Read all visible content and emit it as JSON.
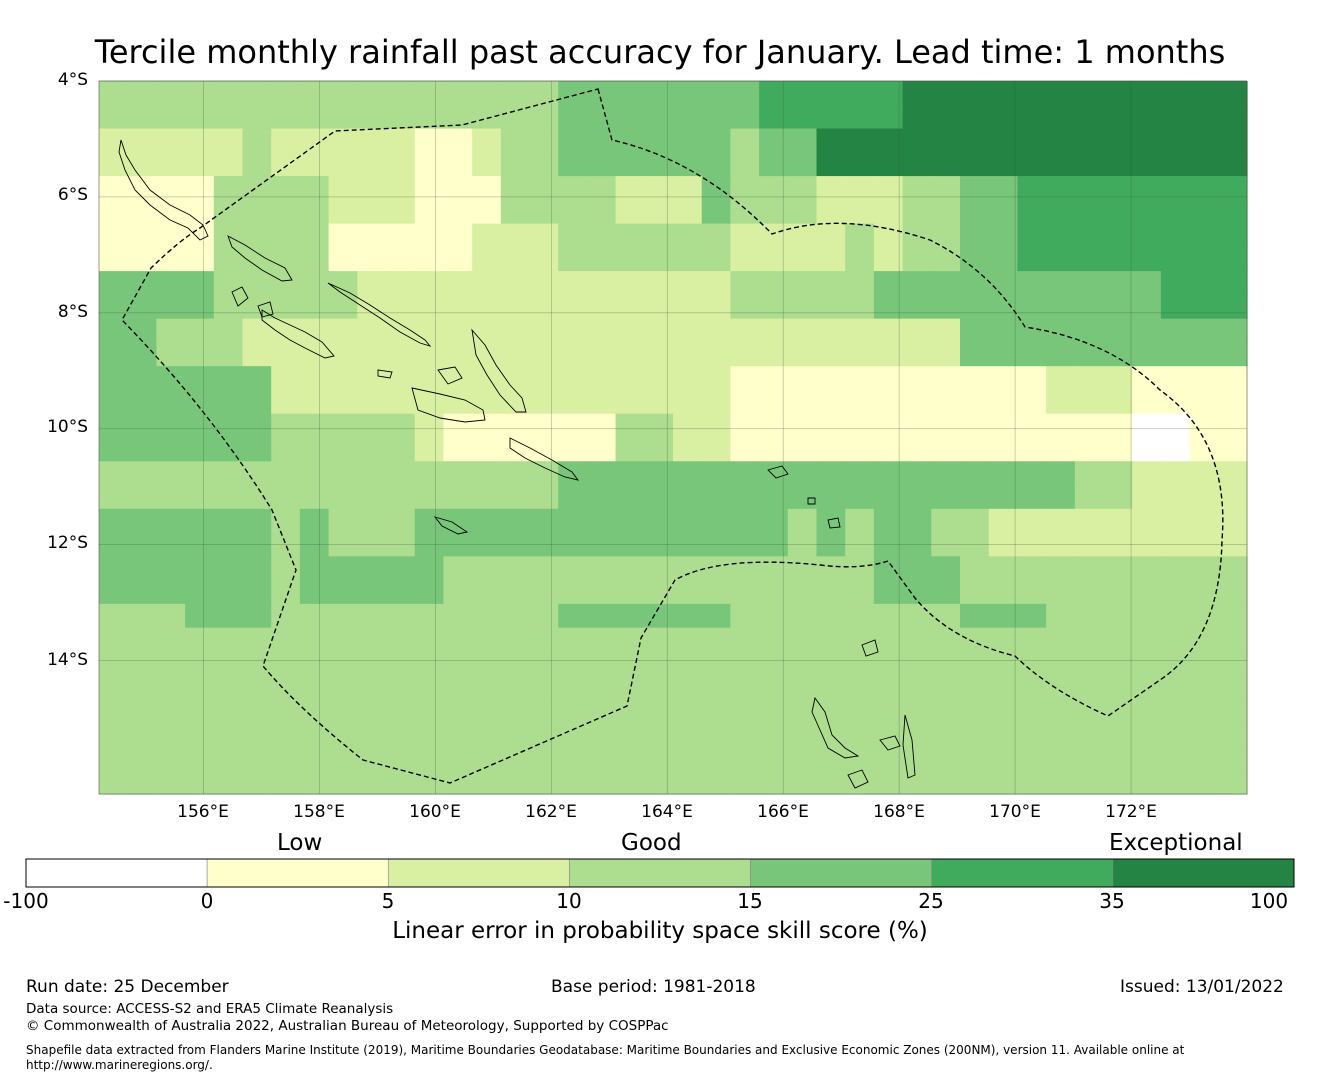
{
  "title": "Tercile monthly rainfall past accuracy for January. Lead time: 1 months",
  "map": {
    "lat_labels": [
      "4°S",
      "6°S",
      "8°S",
      "10°S",
      "12°S",
      "14°S"
    ],
    "lon_labels": [
      "156°E",
      "158°E",
      "160°E",
      "162°E",
      "164°E",
      "166°E",
      "168°E",
      "170°E",
      "172°E"
    ],
    "extent": {
      "lon_min": 154.2,
      "lon_max": 174.0,
      "lat_min": -16.3,
      "lat_max": -4.0
    },
    "cell_size_deg": 0.83,
    "skill_bins": [
      "3333333333333333444444455555666666666666",
      "3333333333333333444444455555666666666666",
      "2222232222211233444444344666666666666666",
      "2222232222211233444444344666666666666666",
      "1111333322211133332224333222334455555555",
      "1111333322211133332224333222334455555555",
      "1111333311111222333333222232334455555555",
      "1111333311111222333333222232334455555555",
      "4444333332222222222222333334444444444555",
      "4444333332222222222222333334444444444555",
      "4433322222222222222222222222224444444444",
      "4433322222222222222222222222224444444444",
      "4444442222222222222222111111111112221111",
      "4444442222222222222222111111111112221111",
      "4444443333321111113322111111111111110011",
      "4444443333321111113322111111111111110011",
      "3333333333333333444444444444444444332222",
      "3333333333333333444444444444444444332222",
      "4444443433344444444444443434433222222222",
      "4444443433344444444444443434433222222222",
      "4444443444443333333333333334443333333333",
      "4444443444443333333333333334443333333333",
      "3334443333333333444444333333334443333333",
      "3333333333333333333333333333333333333333",
      "3333333333333333333333333333333333333333",
      "3333333333333333333333333333333333333333",
      "3333333333333333333333333333333333333333",
      "3333333333333333333333333333333333333333",
      "3333333333333333333333333333333333333333",
      "3333333333333333333333333333333333333333"
    ]
  },
  "legend": {
    "categories": [
      "Low",
      "Good",
      "Exceptional"
    ],
    "ticks": [
      "-100",
      "0",
      "5",
      "10",
      "15",
      "25",
      "35",
      "100"
    ],
    "colors": [
      "#ffffff",
      "#ffffcc",
      "#d9f0a3",
      "#addd8e",
      "#78c679",
      "#41ab5d",
      "#238443"
    ],
    "title": "Linear error in probability space skill score (%)"
  },
  "footer": {
    "run_date": "Run date: 25 December",
    "base_period": "Base period: 1981-2018",
    "issued": "Issued: 13/01/2022",
    "data_source": "Data source: ACCESS-S2 and ERA5 Climate Reanalysis",
    "copyright": "© Commonwealth of Australia 2022, Australian Bureau of Meteorology, Supported by COSPPac",
    "shapefile_line1": "Shapefile data extracted from Flanders Marine Institute (2019), Maritime Boundaries Geodatabase: Maritime Boundaries and Exclusive Economic Zones (200NM), version 11. Available online at",
    "shapefile_line2": "http://www.marineregions.org/."
  }
}
